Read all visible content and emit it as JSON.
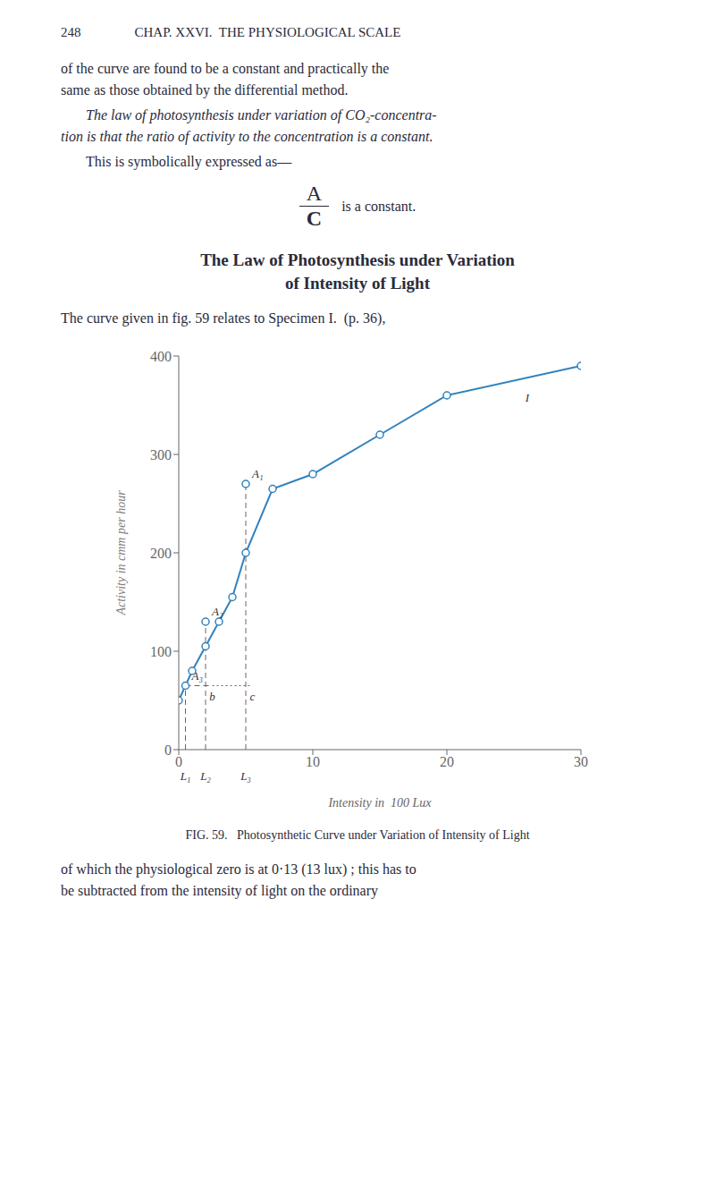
{
  "page": {
    "header": [
      "248",
      "CHAP. XXVI.  THE PHYSIOLOGICAL SCALE"
    ],
    "paragraphs_before": [
      [
        "of the curve are found to be a constant and practically the",
        "same as those obtained by the differential method."
      ],
      [
        "The law of photosynthesis under variation of CO₂-concentra-",
        "tion is that the ratio of activity to the concentration is a constant."
      ],
      [
        "This is symbolically expressed as—"
      ]
    ],
    "formula": [
      "A",
      "C",
      "is a constant."
    ],
    "heading": [
      "The Law of Photosynthesis under Variation",
      "of Intensity of Light"
    ],
    "body": [
      "The curve given in fig. 59 relates to Specimen I.  (p. 36),"
    ],
    "paragraphs_after": [
      "of which the physiological zero is at 0·13 (13 lux) ; this has to",
      "be subtracted from the intensity of light on the ordinary"
    ]
  },
  "chart_data": {
    "type": "line",
    "title": "FIG. 59.   Photosynthetic Curve under Variation of Intensity of Light",
    "x_label": "Intensity in  100 Lux",
    "y_label": "Activity in cmm per hour",
    "x": [
      0.0,
      1.0,
      2.0,
      3.0,
      4.0,
      5.0,
      7.0,
      10.0,
      15.0,
      20.0,
      30.0
    ],
    "values": [
      50,
      80,
      105,
      130,
      155,
      200,
      265,
      280,
      320,
      360,
      390
    ],
    "marker": "circle",
    "xlim": [
      0,
      30
    ],
    "ylim": [
      0,
      400
    ],
    "xticks": [
      0,
      10,
      20,
      30
    ],
    "yticks": [
      0,
      100,
      200,
      300,
      400
    ],
    "grid": false,
    "annotations": [
      {
        "text": "I",
        "x": 26,
        "y": 368
      },
      {
        "text": "A₁",
        "x": 5.0,
        "y": 270,
        "marker": "circle"
      },
      {
        "text": "A₂",
        "x": 2.0,
        "y": 130,
        "marker": "circle"
      },
      {
        "text": "A₃",
        "x": 0.5,
        "y": 65,
        "marker": "circle"
      },
      {
        "text": "b",
        "x": 2.5,
        "y": 65
      },
      {
        "text": "c",
        "x": 5.5,
        "y": 65
      },
      {
        "text": "L₁",
        "x": 0.5,
        "y": 0
      },
      {
        "text": "L₂",
        "x": 2.0,
        "y": 0
      },
      {
        "text": "L₃",
        "x": 5.0,
        "y": 0
      }
    ],
    "reference_lines": [
      {
        "x": [
          0.5,
          0.5
        ],
        "y": [
          0,
          65
        ],
        "line_style": "dashed"
      },
      {
        "x": [
          2.0,
          2.0
        ],
        "y": [
          0,
          130
        ],
        "line_style": "dashed"
      },
      {
        "x": [
          5.0,
          5.0
        ],
        "y": [
          0,
          270
        ],
        "line_style": "dashed"
      },
      {
        "x": [
          0.5,
          2.5
        ],
        "y": [
          65,
          65
        ],
        "line_style": "dashed"
      },
      {
        "x": [
          2.5,
          5.5
        ],
        "y": [
          65,
          65
        ],
        "line_style": "dotted"
      }
    ]
  }
}
